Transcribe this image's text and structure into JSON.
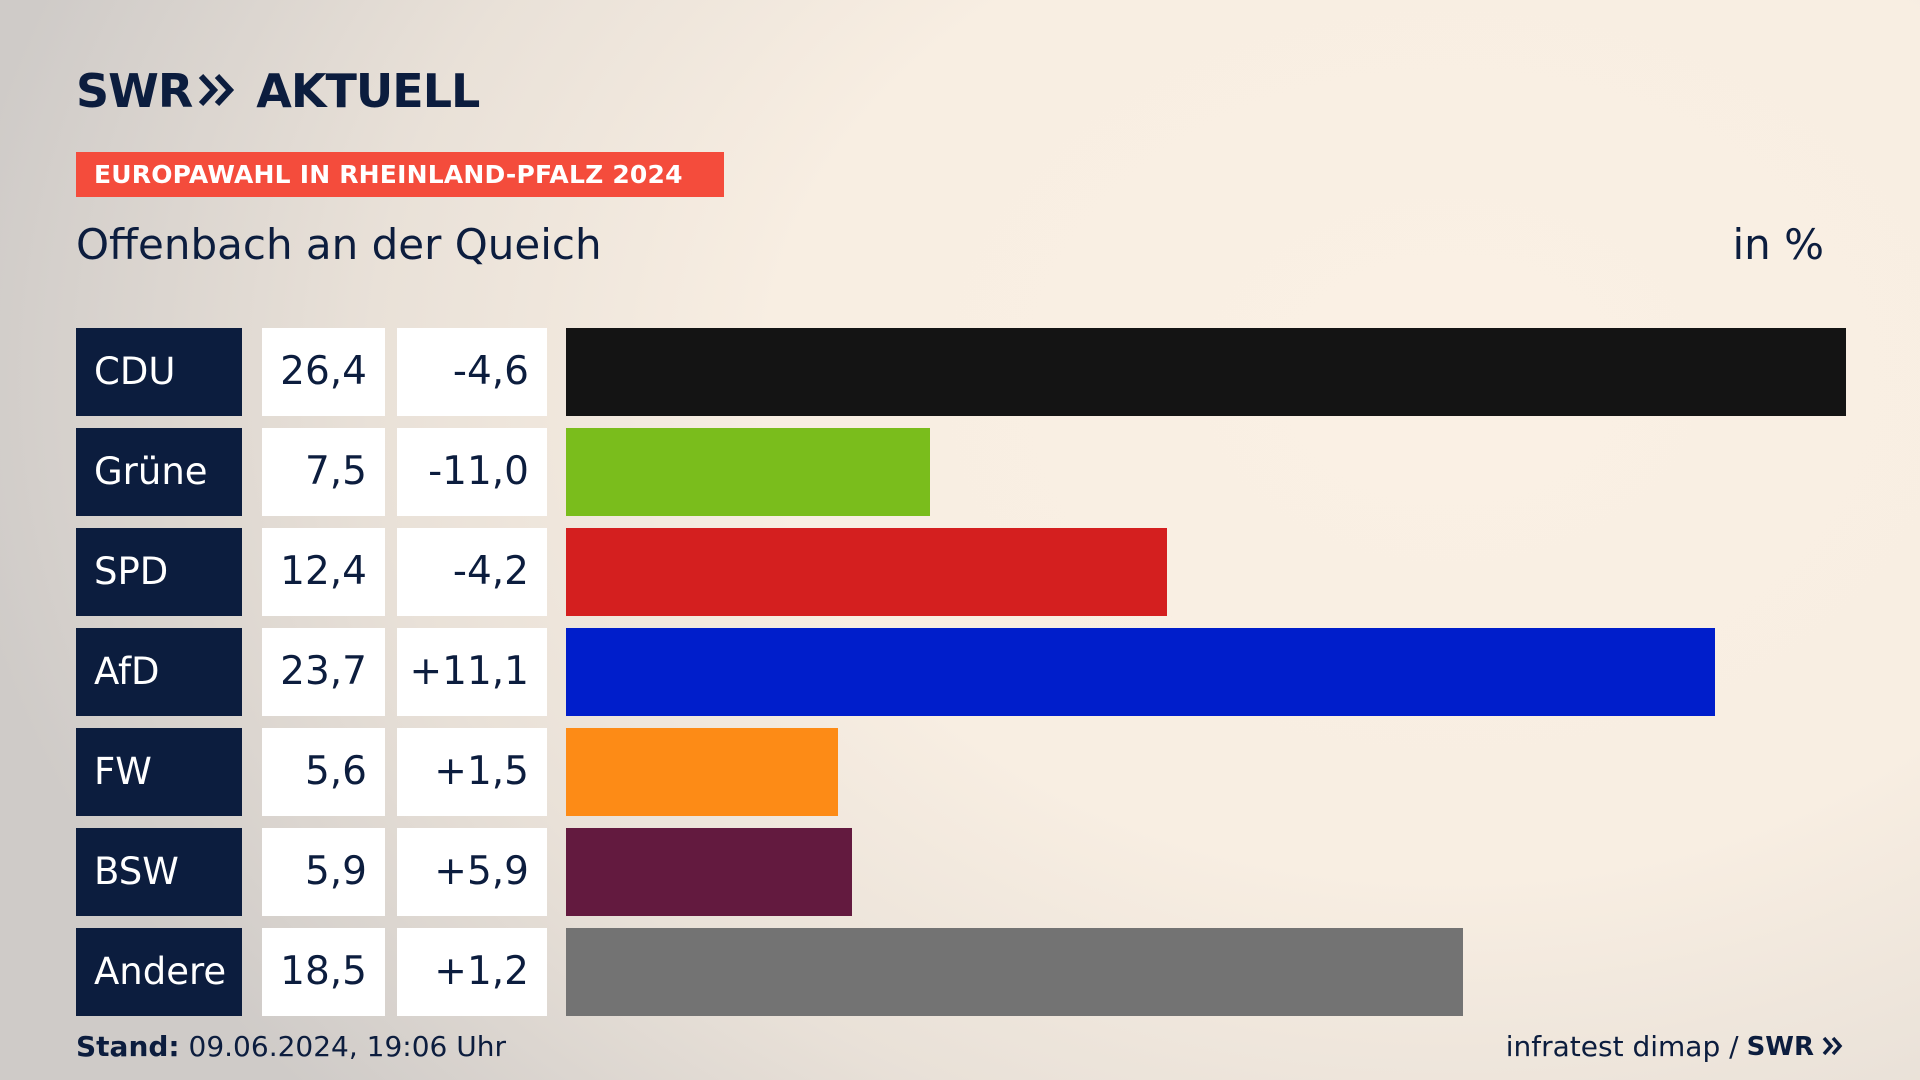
{
  "header": {
    "logo_text": "SWR",
    "logo_suffix": "AKTUELL",
    "logo_icon": "double-chevron-icon",
    "kicker": "EUROPAWAHL IN RHEINLAND-PFALZ 2024",
    "place": "Offenbach an der Queich",
    "unit": "in %"
  },
  "colors": {
    "navy": "#0c1d3e",
    "kicker_red": "#f44c3c"
  },
  "chart_data": {
    "type": "bar",
    "orientation": "horizontal",
    "categories": [
      "CDU",
      "Grüne",
      "SPD",
      "AfD",
      "FW",
      "BSW",
      "Andere"
    ],
    "values": [
      26.4,
      7.5,
      12.4,
      23.7,
      5.6,
      5.9,
      18.5
    ],
    "value_labels": [
      "26,4",
      "7,5",
      "12,4",
      "23,7",
      "5,6",
      "5,9",
      "18,5"
    ],
    "changes": [
      -4.6,
      -11.0,
      -4.2,
      11.1,
      1.5,
      5.9,
      1.2
    ],
    "change_labels": [
      "-4,6",
      "-11,0",
      "-4,2",
      "+11,1",
      "+1,5",
      "+5,9",
      "+1,2"
    ],
    "colors": [
      "#141414",
      "#7abd1c",
      "#d41f1f",
      "#001ecb",
      "#fd8b16",
      "#631a3f",
      "#737373"
    ],
    "title": "Offenbach an der Queich",
    "unit": "in %"
  },
  "footer": {
    "stand_label": "Stand:",
    "stand_value": "09.06.2024, 19:06 Uhr",
    "source": "infratest dimap /",
    "brand": "SWR",
    "brand_icon": "double-chevron-icon"
  }
}
